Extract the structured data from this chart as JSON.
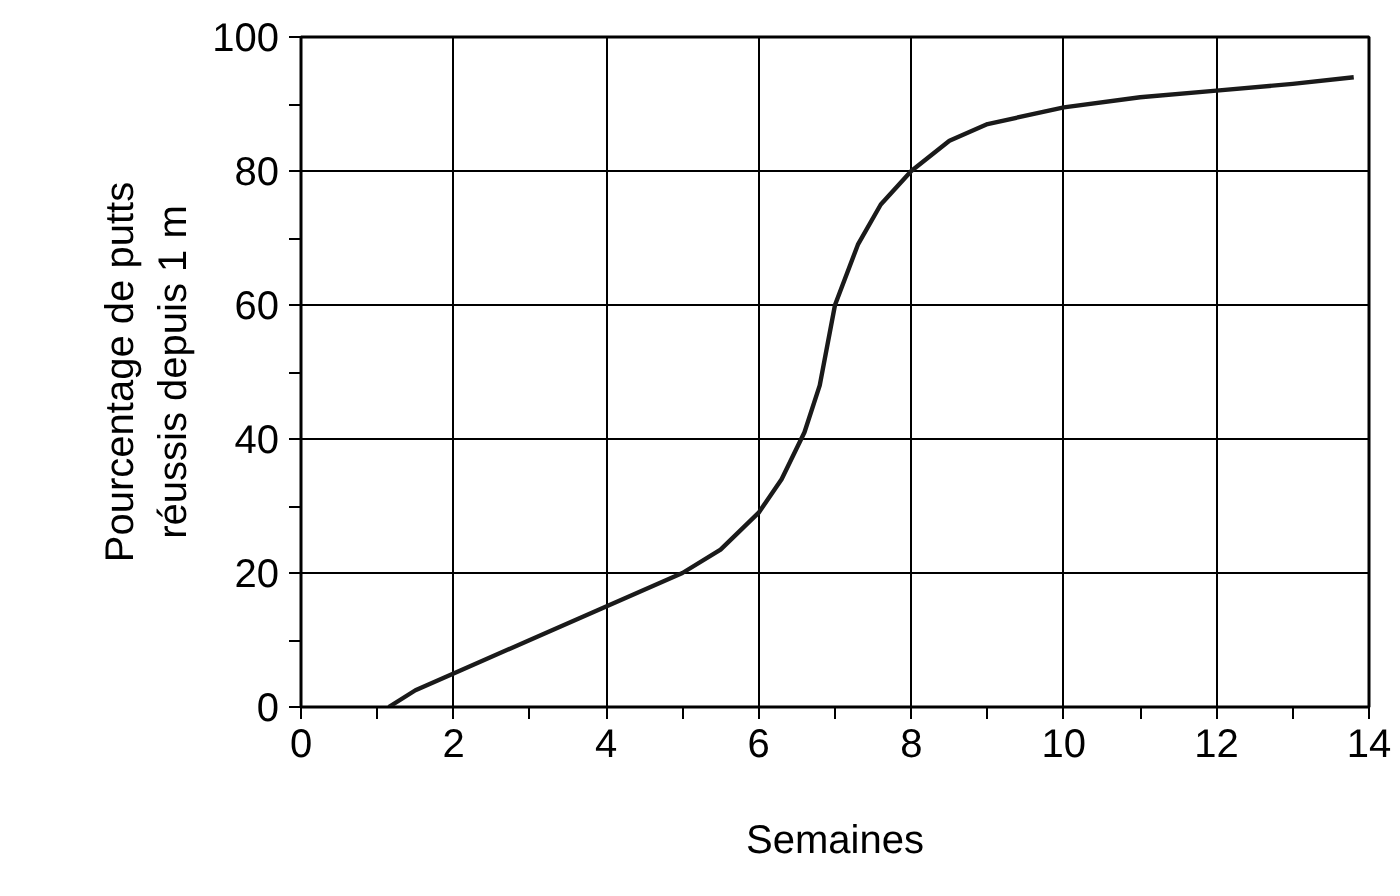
{
  "chart_data": {
    "type": "line",
    "xlabel": "Semaines",
    "ylabel": "Pourcentage de putts\nréussis depuis 1 m",
    "x": [
      1.15,
      1.5,
      2,
      3,
      4,
      5,
      5.5,
      6,
      6.3,
      6.6,
      6.8,
      7,
      7.3,
      7.6,
      8,
      8.5,
      9,
      10,
      11,
      12,
      13,
      13.8
    ],
    "series": [
      {
        "color": "#1a1a1a",
        "values": [
          0,
          2.5,
          5,
          10,
          15,
          20,
          23.5,
          29,
          34,
          41,
          48,
          60,
          69,
          75,
          80,
          84.5,
          87,
          89.5,
          91,
          92,
          93,
          94
        ]
      }
    ],
    "xlim": [
      0,
      14
    ],
    "ylim": [
      0,
      100
    ],
    "xticks": [
      0,
      {
        "value": 1,
        "label": null
      },
      2,
      {
        "value": 3,
        "label": null
      },
      4,
      {
        "value": 5,
        "label": null
      },
      6,
      {
        "value": 7,
        "label": null
      },
      8,
      {
        "value": 9,
        "label": null
      },
      10,
      {
        "value": 11,
        "label": null
      },
      12,
      {
        "value": 13,
        "label": null
      },
      14
    ],
    "yticks": [
      0,
      {
        "value": 10,
        "label": null
      },
      20,
      {
        "value": 30,
        "label": null
      },
      40,
      {
        "value": 50,
        "label": null
      },
      60,
      {
        "value": 70,
        "label": null
      },
      80,
      {
        "value": 90,
        "label": null
      },
      100
    ],
    "grid": true,
    "marker": "none",
    "line_style": "solid"
  }
}
